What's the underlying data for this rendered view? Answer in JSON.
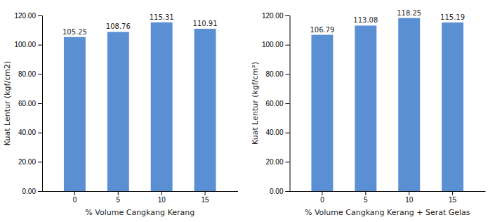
{
  "chart_data": [
    {
      "type": "bar",
      "categories": [
        "0",
        "5",
        "10",
        "15"
      ],
      "values": [
        105.25,
        108.76,
        115.31,
        110.91
      ],
      "color": "#5B8FD4",
      "xlabel": "% Volume Cangkang Kerang",
      "ylabel": "Kuat Lentur (kgf/cm2)",
      "ylim": [
        0,
        120.0
      ],
      "yticks": [
        {
          "value": 0,
          "label": "0.00"
        },
        {
          "value": 20,
          "label": "20.00"
        },
        {
          "value": 40,
          "label": "40.00"
        },
        {
          "value": 60,
          "label": "60.00"
        },
        {
          "value": 80,
          "label": "80.00"
        },
        {
          "value": 100,
          "label": "100.00"
        },
        {
          "value": 120,
          "label": "120.00"
        }
      ],
      "data_labels": true,
      "grid": false
    },
    {
      "type": "bar",
      "categories": [
        "0",
        "5",
        "10",
        "15"
      ],
      "values": [
        106.79,
        113.08,
        118.25,
        115.19
      ],
      "color": "#5B8FD4",
      "xlabel": "% Volume Cangkang Kerang + Serat Gelas",
      "ylabel": "Kuat Lentur (kgf/cm²)",
      "ylim": [
        0,
        120.0
      ],
      "yticks": [
        {
          "value": 0,
          "label": "0.00"
        },
        {
          "value": 20,
          "label": "20.00"
        },
        {
          "value": 40,
          "label": "40.00"
        },
        {
          "value": 60,
          "label": "60.00"
        },
        {
          "value": 80,
          "label": "80.00"
        },
        {
          "value": 100,
          "label": "100.00"
        },
        {
          "value": 120,
          "label": "120.00"
        }
      ],
      "data_labels": true,
      "grid": false
    }
  ]
}
